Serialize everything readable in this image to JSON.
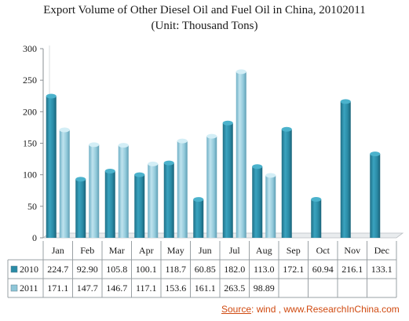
{
  "chart_data": {
    "type": "bar",
    "title": "Export Volume of Other Diesel Oil and Fuel Oil in China, 20102011",
    "subtitle": "(Unit: Thousand Tons)",
    "categories": [
      "Jan",
      "Feb",
      "Mar",
      "Apr",
      "May",
      "Jun",
      "Jul",
      "Aug",
      "Sep",
      "Oct",
      "Nov",
      "Dec"
    ],
    "series": [
      {
        "name": "2010",
        "color": "#2a8ba6",
        "values": [
          224.7,
          92.9,
          105.8,
          100.1,
          118.7,
          60.85,
          182.0,
          113.0,
          172.1,
          60.94,
          216.1,
          133.1
        ],
        "labels": [
          "224.7",
          "92.90",
          "105.8",
          "100.1",
          "118.7",
          "60.85",
          "182.0",
          "113.0",
          "172.1",
          "60.94",
          "216.1",
          "133.1"
        ]
      },
      {
        "name": "2011",
        "color": "#8ec6d8",
        "values": [
          171.1,
          147.7,
          146.7,
          117.1,
          153.6,
          161.1,
          263.5,
          98.89,
          null,
          null,
          null,
          null
        ],
        "labels": [
          "171.1",
          "147.7",
          "146.7",
          "117.1",
          "153.6",
          "161.1",
          "263.5",
          "98.89",
          "",
          "",
          "",
          ""
        ]
      }
    ],
    "ylim": [
      0,
      300
    ],
    "yticks": [
      0,
      50,
      100,
      150,
      200,
      250,
      300
    ],
    "grid": false,
    "legend": "data-table"
  },
  "source": {
    "label": "Source",
    "text": ": wind , www.ResearchInChina.com"
  }
}
